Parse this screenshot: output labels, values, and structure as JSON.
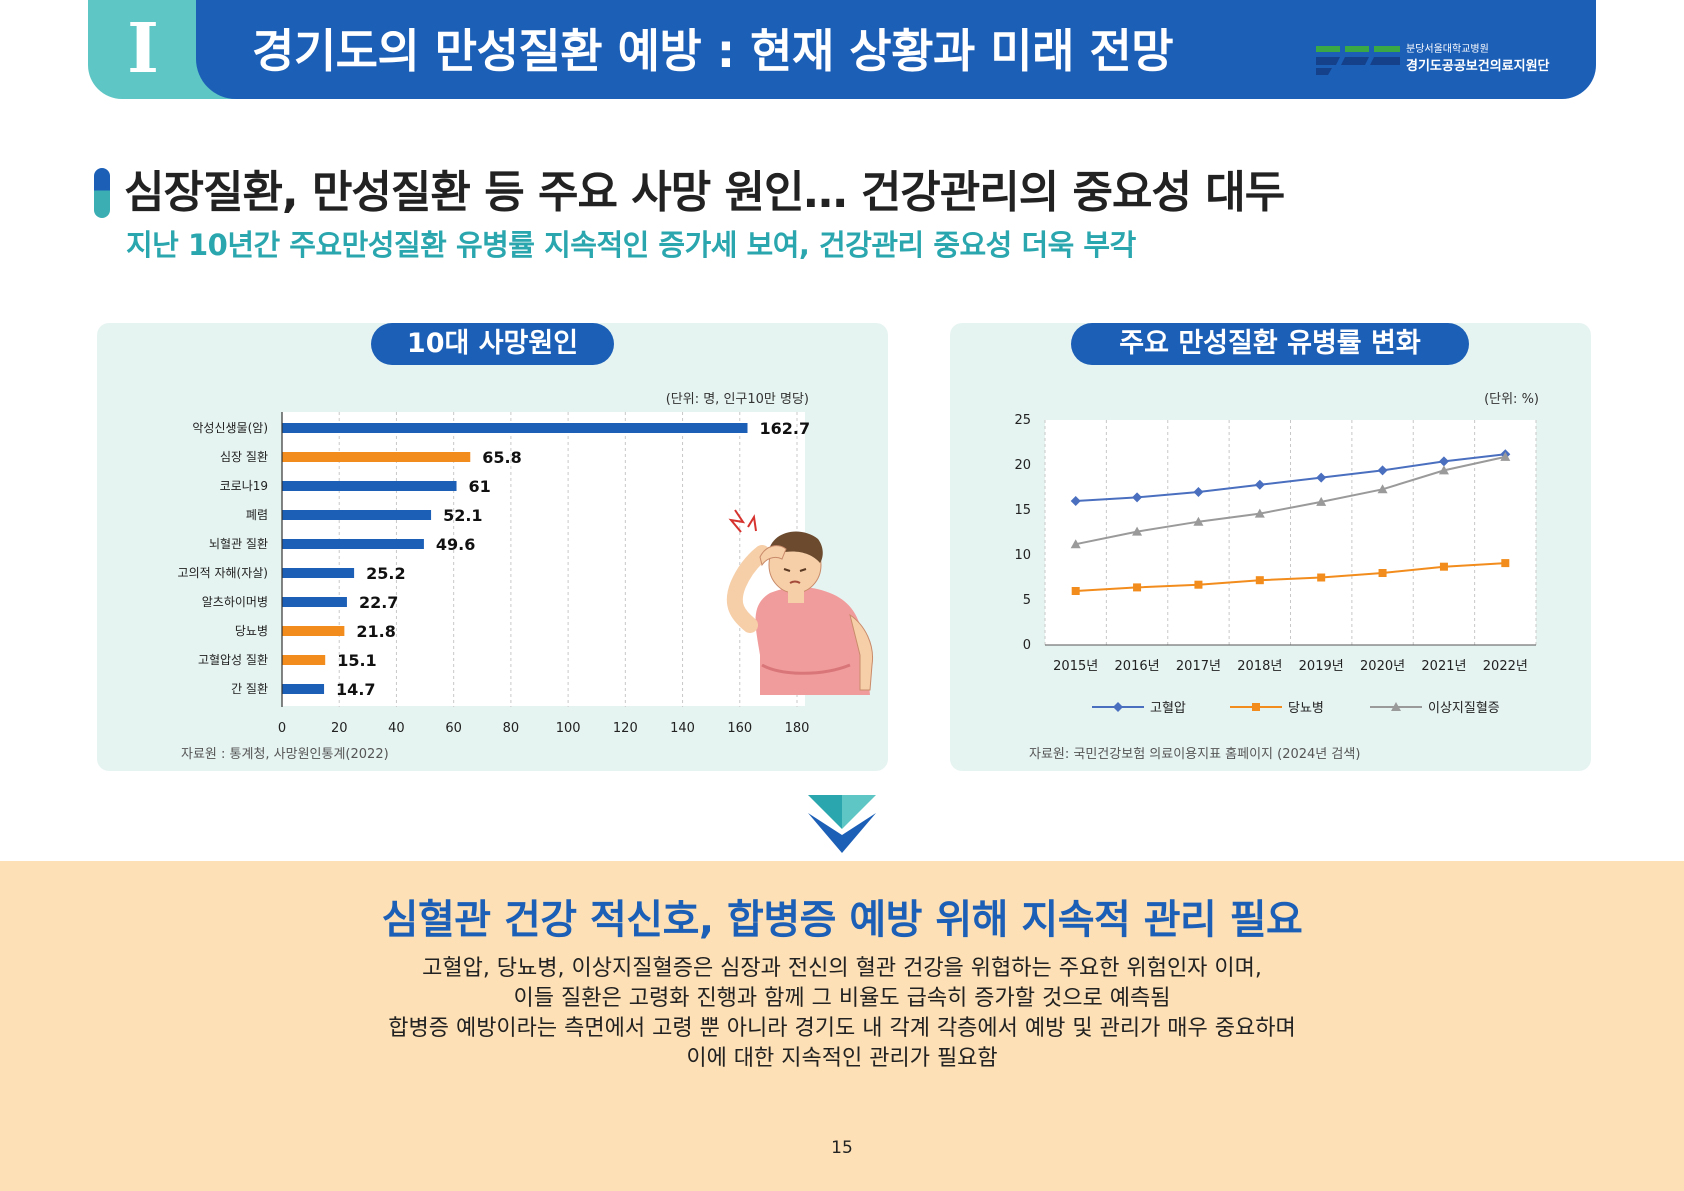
{
  "header": {
    "section_numeral": "I",
    "title": "경기도의 만성질환 예방 : 현재 상황과 미래 전망",
    "org_line1": "분당서울대학교병원",
    "org_line2": "경기도공공보건의료지원단",
    "colors": {
      "blue": "#1c5fb7",
      "teal": "#5ec6c4",
      "green": "#39a845"
    }
  },
  "headline": "심장질환, 만성질환 등 주요 사망 원인… 건강관리의 중요성 대두",
  "subheadline": "지난 10년간 주요만성질환 유병률 지속적인 증가세 보여, 건강관리 중요성 더욱 부각",
  "left_panel": {
    "title": "10대 사망원인",
    "unit": "(단위: 명, 인구10만 명당)",
    "source": "자료원 : 통계청, 사망원인통계(2022)",
    "illustration": "person-headache-illustration"
  },
  "right_panel": {
    "title": "주요 만성질환 유병률 변화",
    "unit": "(단위: %)",
    "source": "자료원: 국민건강보험 의료이용지표 홈페이지 (2024년 검색)"
  },
  "chart_data": [
    {
      "type": "bar",
      "orientation": "horizontal",
      "title": "10대 사망원인",
      "categories": [
        "악성신생물(암)",
        "심장 질환",
        "코로나19",
        "폐렴",
        "뇌혈관 질환",
        "고의적 자해(자살)",
        "알츠하이머병",
        "당뇨병",
        "고혈압성 질환",
        "간 질환"
      ],
      "values": [
        162.7,
        65.8,
        61,
        52.1,
        49.6,
        25.2,
        22.7,
        21.8,
        15.1,
        14.7
      ],
      "value_labels": [
        "162.7",
        "65.8",
        "61",
        "52.1",
        "49.6",
        "25.2",
        "22.7",
        "21.8",
        "15.1",
        "14.7"
      ],
      "highlight": [
        false,
        true,
        false,
        false,
        false,
        false,
        false,
        true,
        true,
        false
      ],
      "colors": {
        "default": "#1c5fb7",
        "highlight": "#f28c1c"
      },
      "xlim": [
        0,
        180
      ],
      "xticks": [
        0,
        20,
        40,
        60,
        80,
        100,
        120,
        140,
        160,
        180
      ],
      "grid": "vertical-dashed"
    },
    {
      "type": "line",
      "title": "주요 만성질환 유병률 변화",
      "categories": [
        "2015년",
        "2016년",
        "2017년",
        "2018년",
        "2019년",
        "2020년",
        "2021년",
        "2022년"
      ],
      "series": [
        {
          "name": "고혈압",
          "color": "#4a6fbf",
          "marker": "diamond",
          "values": [
            16.0,
            16.4,
            17.0,
            17.8,
            18.6,
            19.4,
            20.4,
            21.2
          ]
        },
        {
          "name": "당뇨병",
          "color": "#f28c1c",
          "marker": "square",
          "values": [
            6.0,
            6.4,
            6.7,
            7.2,
            7.5,
            8.0,
            8.7,
            9.1
          ]
        },
        {
          "name": "이상지질혈증",
          "color": "#9a9a9a",
          "marker": "triangle",
          "values": [
            11.2,
            12.6,
            13.7,
            14.6,
            15.9,
            17.3,
            19.4,
            20.9
          ]
        }
      ],
      "ylim": [
        0,
        25
      ],
      "yticks": [
        0,
        5,
        10,
        15,
        20,
        25
      ],
      "grid": "vertical-dashed",
      "legend": "bottom"
    }
  ],
  "conclusion": {
    "title": "심혈관 건강 적신호, 합병증 예방 위해 지속적 관리 필요",
    "lines": [
      "고혈압, 당뇨병, 이상지질혈증은 심장과 전신의 혈관 건강을 위협하는 주요한 위험인자 이며,",
      "이들 질환은 고령화 진행과 함께 그 비율도 급속히 증가할 것으로 예측됨",
      "합병증 예방이라는 측면에서 고령 뿐 아니라 경기도 내 각계 각층에서 예방 및 관리가 매우 중요하며",
      "이에 대한 지속적인 관리가 필요함"
    ]
  },
  "page_number": "15"
}
